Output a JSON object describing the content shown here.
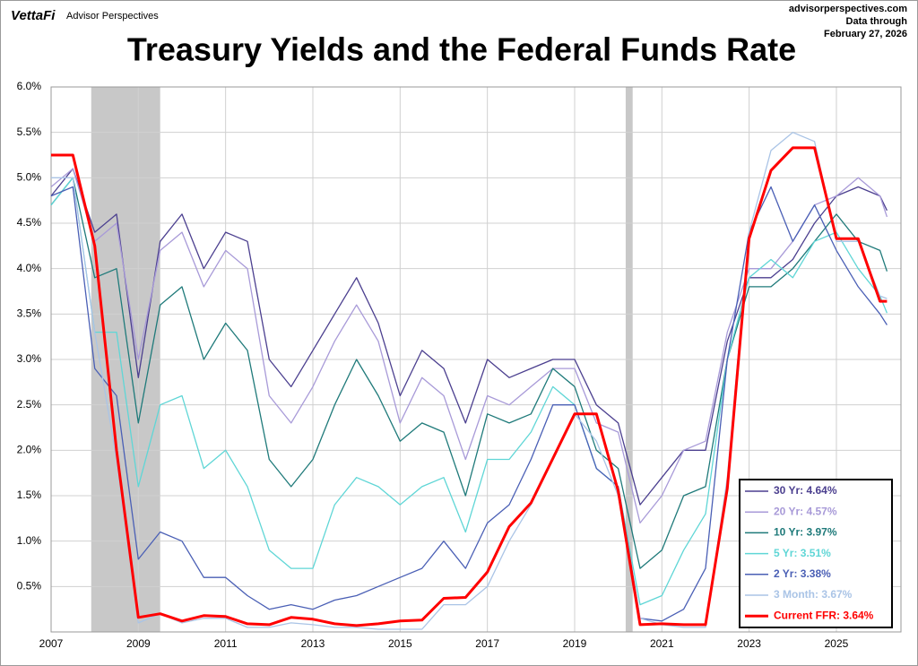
{
  "header": {
    "brand": "VettaFi",
    "brand_sub": "Advisor Perspectives",
    "site": "advisorperspectives.com",
    "data_through": "Data through",
    "date": "February 27, 2026"
  },
  "chart_data": {
    "type": "line",
    "title": "Treasury Yields and the Federal Funds Rate",
    "x": [
      2007.0,
      2007.5,
      2008.0,
      2008.5,
      2009.0,
      2009.5,
      2010.0,
      2010.5,
      2011.0,
      2011.5,
      2012.0,
      2012.5,
      2013.0,
      2013.5,
      2014.0,
      2014.5,
      2015.0,
      2015.5,
      2016.0,
      2016.5,
      2017.0,
      2017.5,
      2018.0,
      2018.5,
      2019.0,
      2019.5,
      2020.0,
      2020.5,
      2021.0,
      2021.5,
      2022.0,
      2022.5,
      2023.0,
      2023.5,
      2024.0,
      2024.5,
      2025.0,
      2025.5,
      2026.0,
      2026.16
    ],
    "xlim": [
      2007,
      2026.48
    ],
    "xticks": [
      2007,
      2009,
      2011,
      2013,
      2015,
      2017,
      2019,
      2021,
      2023,
      2025
    ],
    "ylim": [
      0,
      6
    ],
    "yticks": [
      {
        "value": 0.5,
        "label": "0.5%"
      },
      {
        "value": 1.0,
        "label": "1.0%"
      },
      {
        "value": 1.5,
        "label": "1.5%"
      },
      {
        "value": 2.0,
        "label": "2.0%"
      },
      {
        "value": 2.5,
        "label": "2.5%"
      },
      {
        "value": 3.0,
        "label": "3.0%"
      },
      {
        "value": 3.5,
        "label": "3.5%"
      },
      {
        "value": 4.0,
        "label": "4.0%"
      },
      {
        "value": 4.5,
        "label": "4.5%"
      },
      {
        "value": 5.0,
        "label": "5.0%"
      },
      {
        "value": 5.5,
        "label": "5.5%"
      },
      {
        "value": 6.0,
        "label": "6.0%"
      }
    ],
    "grid": true,
    "legend": "lower right",
    "recessions": [
      [
        2007.92,
        2009.5
      ],
      [
        2020.17,
        2020.33
      ]
    ],
    "recession_color": "#c8c8c8",
    "series": [
      {
        "name": "30 Yr: 4.64%",
        "color": "#4b3f8f",
        "values": [
          4.8,
          5.1,
          4.4,
          4.6,
          2.8,
          4.3,
          4.6,
          4.0,
          4.4,
          4.3,
          3.0,
          2.7,
          3.1,
          3.5,
          3.9,
          3.4,
          2.6,
          3.1,
          2.9,
          2.3,
          3.0,
          2.8,
          2.9,
          3.0,
          3.0,
          2.5,
          2.3,
          1.4,
          1.7,
          2.0,
          2.0,
          3.2,
          3.9,
          3.9,
          4.1,
          4.5,
          4.8,
          4.9,
          4.8,
          4.64
        ]
      },
      {
        "name": "20 Yr: 4.57%",
        "color": "#a89ad8",
        "values": [
          4.9,
          5.1,
          4.3,
          4.5,
          3.0,
          4.2,
          4.4,
          3.8,
          4.2,
          4.0,
          2.6,
          2.3,
          2.7,
          3.2,
          3.6,
          3.2,
          2.3,
          2.8,
          2.6,
          1.9,
          2.6,
          2.5,
          2.7,
          2.9,
          2.9,
          2.3,
          2.2,
          1.2,
          1.5,
          2.0,
          2.1,
          3.3,
          4.0,
          4.0,
          4.3,
          4.7,
          4.8,
          5.0,
          4.8,
          4.57
        ]
      },
      {
        "name": "10 Yr: 3.97%",
        "color": "#1f7a7a",
        "values": [
          4.7,
          5.0,
          3.9,
          4.0,
          2.3,
          3.6,
          3.8,
          3.0,
          3.4,
          3.1,
          1.9,
          1.6,
          1.9,
          2.5,
          3.0,
          2.6,
          2.1,
          2.3,
          2.2,
          1.5,
          2.4,
          2.3,
          2.4,
          2.9,
          2.7,
          2.0,
          1.8,
          0.7,
          0.9,
          1.5,
          1.6,
          3.0,
          3.8,
          3.8,
          4.0,
          4.3,
          4.6,
          4.3,
          4.2,
          3.97
        ]
      },
      {
        "name": "5 Yr: 3.51%",
        "color": "#5fd6d6",
        "values": [
          4.7,
          5.0,
          3.3,
          3.3,
          1.6,
          2.5,
          2.6,
          1.8,
          2.0,
          1.6,
          0.9,
          0.7,
          0.7,
          1.4,
          1.7,
          1.6,
          1.4,
          1.6,
          1.7,
          1.1,
          1.9,
          1.9,
          2.2,
          2.7,
          2.5,
          1.8,
          1.6,
          0.3,
          0.4,
          0.9,
          1.3,
          3.0,
          3.9,
          4.1,
          3.9,
          4.3,
          4.4,
          4.0,
          3.7,
          3.51
        ]
      },
      {
        "name": "2 Yr: 3.38%",
        "color": "#4a5fb5",
        "values": [
          4.8,
          4.9,
          2.9,
          2.6,
          0.8,
          1.1,
          1.0,
          0.6,
          0.6,
          0.4,
          0.25,
          0.3,
          0.25,
          0.35,
          0.4,
          0.5,
          0.6,
          0.7,
          1.0,
          0.7,
          1.2,
          1.4,
          1.9,
          2.5,
          2.5,
          1.8,
          1.6,
          0.15,
          0.12,
          0.25,
          0.7,
          3.0,
          4.4,
          4.9,
          4.3,
          4.7,
          4.2,
          3.8,
          3.5,
          3.38
        ]
      },
      {
        "name": "3 Month: 3.67%",
        "color": "#aac4e6",
        "values": [
          5.0,
          5.0,
          3.3,
          1.9,
          0.1,
          0.2,
          0.1,
          0.15,
          0.15,
          0.05,
          0.05,
          0.1,
          0.08,
          0.05,
          0.05,
          0.03,
          0.03,
          0.03,
          0.3,
          0.3,
          0.5,
          1.0,
          1.4,
          1.9,
          2.4,
          2.1,
          1.5,
          0.15,
          0.08,
          0.05,
          0.05,
          1.7,
          4.4,
          5.3,
          5.5,
          5.4,
          4.3,
          4.3,
          3.7,
          3.67
        ]
      },
      {
        "name": "Current FFR: 3.64%",
        "color": "#ff0000",
        "values": [
          5.25,
          5.25,
          4.25,
          2.0,
          0.16,
          0.2,
          0.12,
          0.18,
          0.17,
          0.09,
          0.08,
          0.16,
          0.14,
          0.09,
          0.07,
          0.09,
          0.12,
          0.13,
          0.37,
          0.38,
          0.66,
          1.16,
          1.42,
          1.91,
          2.4,
          2.4,
          1.55,
          0.08,
          0.09,
          0.08,
          0.08,
          1.58,
          4.33,
          5.08,
          5.33,
          5.33,
          4.33,
          4.33,
          3.64,
          3.64
        ]
      }
    ]
  }
}
